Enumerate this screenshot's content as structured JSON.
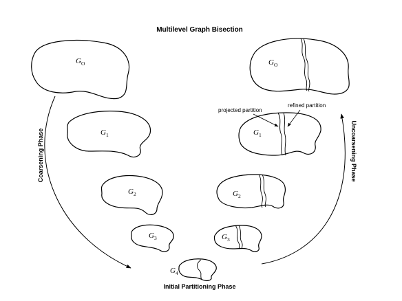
{
  "title": "Multilevel Graph Bisection",
  "phases": {
    "coarsening": "Coarsening Phase",
    "uncoarsening": "Uncoarsening Phase",
    "initial": "Initial Partitioning Phase"
  },
  "annotations": {
    "projected": "projected partition",
    "refined": "refined partition"
  },
  "graphs": {
    "base": "G",
    "left": [
      "O",
      "1",
      "2",
      "3"
    ],
    "bottom": "4",
    "right": [
      "O",
      "1",
      "2",
      "3"
    ]
  }
}
